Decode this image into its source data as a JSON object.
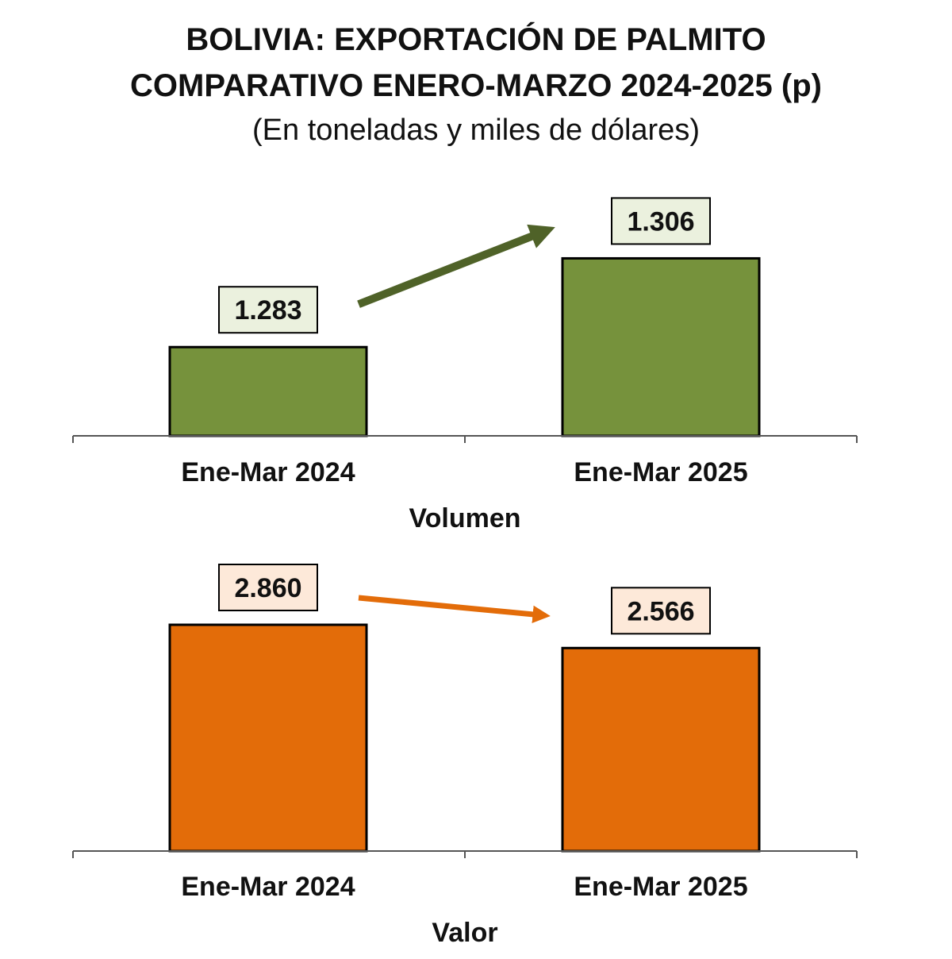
{
  "header": {
    "title_line1": "BOLIVIA: EXPORTACIÓN DE PALMITO",
    "title_line2": "COMPARATIVO ENERO-MARZO 2024-2025 (p)",
    "subtitle": "(En toneladas y miles de dólares)"
  },
  "chart_data": [
    {
      "type": "bar",
      "categories": [
        "Ene-Mar 2024",
        "Ene-Mar 2025"
      ],
      "values": [
        1283,
        1306
      ],
      "data_labels": [
        "1.283",
        "1.306"
      ],
      "xlabel": "Volumen",
      "ylabel": "",
      "ylim": [
        1260,
        1310
      ],
      "grid": false,
      "bar_color": "#76923c",
      "label_box_color": "#ebf1de",
      "arrow_color": "#4f6228",
      "trend": "up"
    },
    {
      "type": "bar",
      "categories": [
        "Ene-Mar 2024",
        "Ene-Mar 2025"
      ],
      "values": [
        2860,
        2566
      ],
      "data_labels": [
        "2.860",
        "2.566"
      ],
      "xlabel": "Valor",
      "ylabel": "",
      "ylim": [
        0,
        2860
      ],
      "grid": false,
      "bar_color": "#e36c09",
      "label_box_color": "#fde9d9",
      "arrow_color": "#e36c09",
      "trend": "down"
    }
  ]
}
